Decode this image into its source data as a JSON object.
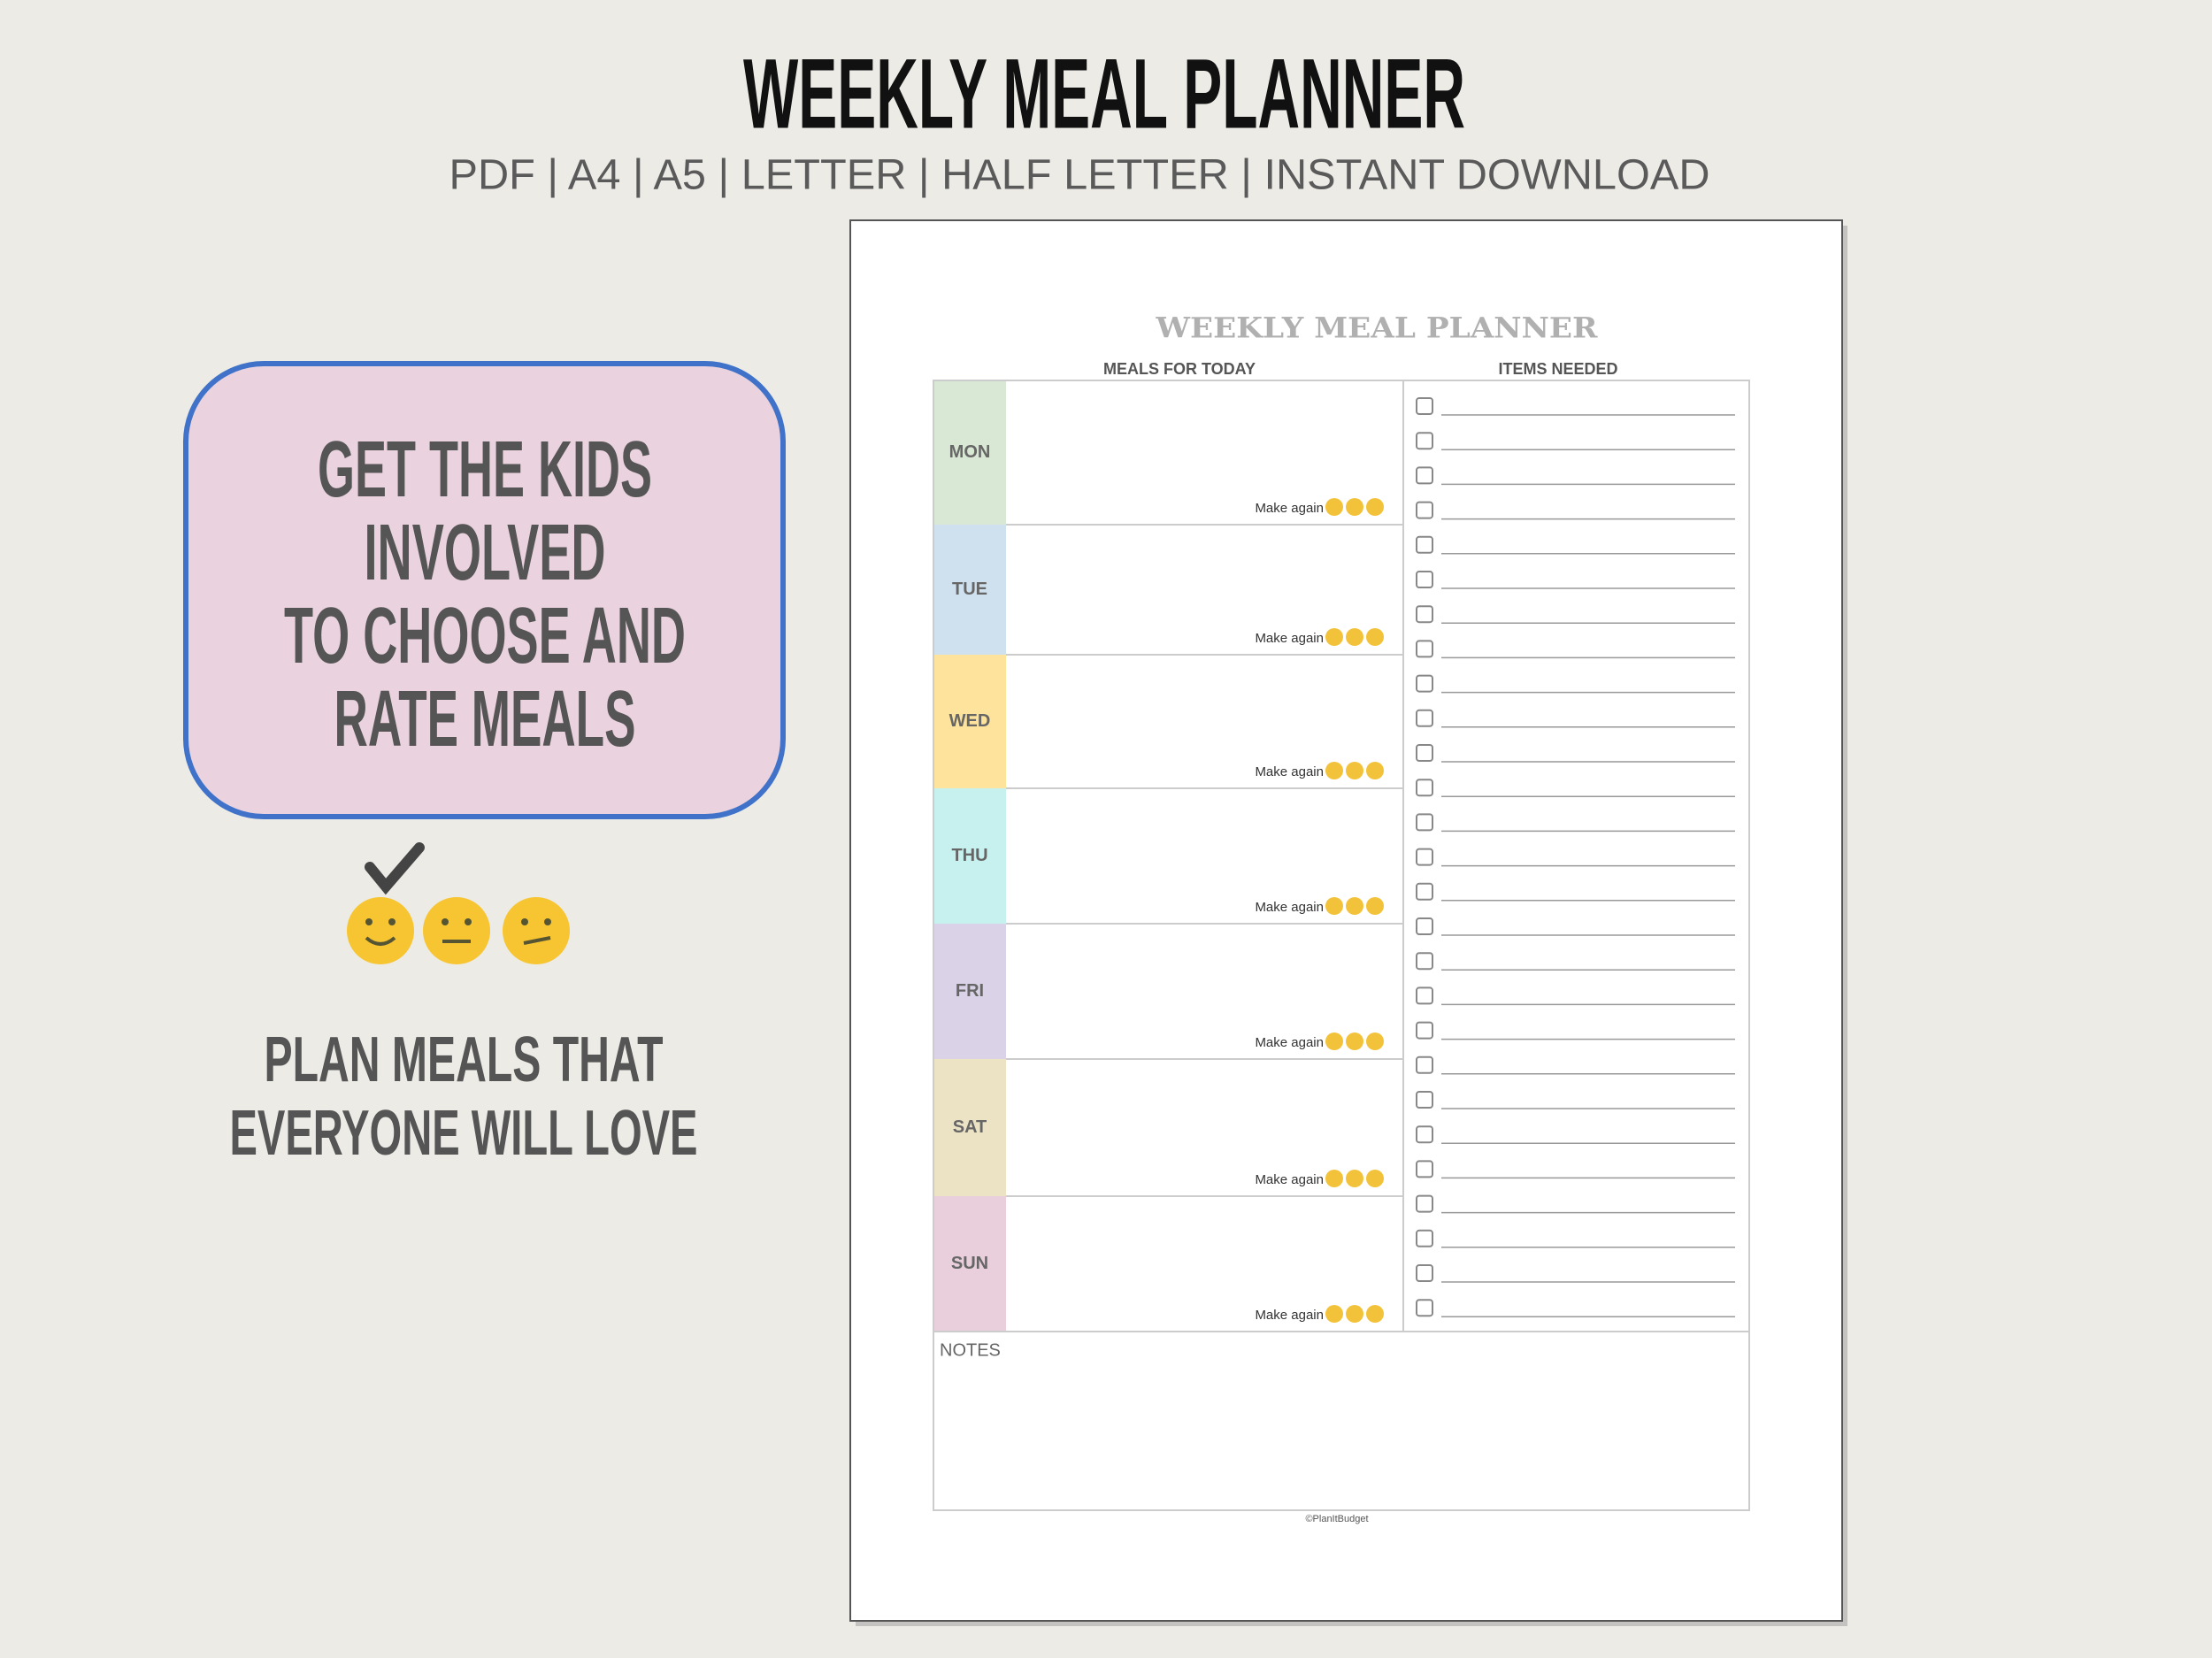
{
  "header": {
    "title": "WEEKLY MEAL PLANNER",
    "subtitle": "PDF | A4 | A5 | LETTER | HALF LETTER | INSTANT DOWNLOAD"
  },
  "callout": {
    "lines": [
      "GET THE KIDS",
      "INVOLVED",
      "TO CHOOSE AND",
      "RATE MEALS"
    ]
  },
  "tagline": {
    "lines": [
      "PLAN MEALS THAT",
      "EVERYONE WILL LOVE"
    ]
  },
  "planner": {
    "title": "WEEKLY MEAL PLANNER",
    "columns": [
      "MEALS FOR TODAY",
      "ITEMS NEEDED"
    ],
    "days": [
      "MON",
      "TUE",
      "WED",
      "THU",
      "FRI",
      "SAT",
      "SUN"
    ],
    "rate_label": "Make again",
    "notes_label": "NOTES",
    "footer": "©PlanItBudget"
  }
}
